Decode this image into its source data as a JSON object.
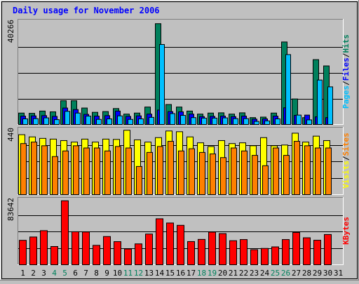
{
  "chart_data": [
    {
      "type": "bar",
      "title": "Daily usage for November 2006",
      "panel": "hits-files-pages",
      "ymax_label": "40266",
      "categories": [
        "1",
        "2",
        "3",
        "4",
        "5",
        "6",
        "7",
        "8",
        "9",
        "10",
        "11",
        "12",
        "13",
        "14",
        "15",
        "16",
        "17",
        "18",
        "19",
        "20",
        "21",
        "22",
        "23",
        "24",
        "25",
        "26",
        "27",
        "28",
        "29",
        "30",
        "31"
      ],
      "weekend_days": [
        "4",
        "5",
        "11",
        "12",
        "18",
        "19",
        "25",
        "26"
      ],
      "series": [
        {
          "name": "Hits",
          "color": "#00805c",
          "values": [
            4800,
            4700,
            5600,
            5300,
            9700,
            9700,
            6800,
            5100,
            5400,
            6600,
            4400,
            4800,
            7200,
            40266,
            8200,
            7200,
            5600,
            4400,
            4800,
            4900,
            4400,
            4900,
            3000,
            3200,
            4800,
            33000,
            10400,
            3000,
            26000,
            23500,
            0
          ]
        },
        {
          "name": "Files",
          "color": "#00c0ff",
          "values": [
            2500,
            2600,
            2900,
            2200,
            5500,
            4800,
            3600,
            2300,
            2500,
            3700,
            2300,
            2500,
            3100,
            32000,
            4600,
            3900,
            3000,
            2800,
            2800,
            2900,
            2600,
            2600,
            1500,
            1700,
            2500,
            28000,
            4000,
            2100,
            17900,
            15200,
            0
          ]
        },
        {
          "name": "Pages",
          "color": "#0000ff",
          "values": [
            3600,
            3700,
            3800,
            3500,
            6800,
            6200,
            4300,
            3600,
            3800,
            5600,
            3500,
            3700,
            4400,
            6000,
            5400,
            5300,
            4400,
            3400,
            3500,
            3600,
            3400,
            3600,
            2400,
            2500,
            3600,
            6900,
            3900,
            4000,
            3300,
            3000,
            0
          ]
        }
      ],
      "legend": [
        "Hits",
        "Files",
        "Pages"
      ],
      "legend_colors": [
        "#00805c",
        "#0000ff",
        "#00c0ff"
      ]
    },
    {
      "type": "bar",
      "panel": "visits-sites",
      "ymax_label": "440",
      "categories": [
        "1",
        "2",
        "3",
        "4",
        "5",
        "6",
        "7",
        "8",
        "9",
        "10",
        "11",
        "12",
        "13",
        "14",
        "15",
        "16",
        "17",
        "18",
        "19",
        "20",
        "21",
        "22",
        "23",
        "24",
        "25",
        "26",
        "27",
        "28",
        "29",
        "30",
        "31"
      ],
      "series": [
        {
          "name": "Visits",
          "color": "#ffff00",
          "values": [
            410,
            395,
            385,
            380,
            370,
            360,
            380,
            360,
            380,
            378,
            440,
            375,
            360,
            390,
            435,
            430,
            395,
            355,
            330,
            370,
            350,
            355,
            335,
            390,
            335,
            340,
            420,
            360,
            400,
            370,
            0
          ]
        },
        {
          "name": "Sites",
          "color": "#ff8000",
          "values": [
            350,
            360,
            335,
            262,
            300,
            335,
            320,
            320,
            300,
            330,
            320,
            195,
            290,
            330,
            365,
            300,
            315,
            290,
            280,
            255,
            320,
            300,
            270,
            200,
            320,
            270,
            365,
            335,
            320,
            320,
            0
          ]
        }
      ],
      "legend": [
        "Sites",
        "Visits"
      ],
      "legend_colors": [
        "#ff8000",
        "#ffff00"
      ]
    },
    {
      "type": "bar",
      "panel": "kbytes",
      "ymax_label": "83642",
      "categories": [
        "1",
        "2",
        "3",
        "4",
        "5",
        "6",
        "7",
        "8",
        "9",
        "10",
        "11",
        "12",
        "13",
        "14",
        "15",
        "16",
        "17",
        "18",
        "19",
        "20",
        "21",
        "22",
        "23",
        "24",
        "25",
        "26",
        "27",
        "28",
        "29",
        "30",
        "31"
      ],
      "series": [
        {
          "name": "KBytes",
          "color": "#ff0000",
          "values": [
            32500,
            36800,
            45000,
            24500,
            83642,
            43600,
            43300,
            26000,
            37400,
            30800,
            21300,
            27900,
            40600,
            60400,
            54900,
            51900,
            30900,
            33700,
            43100,
            41200,
            32000,
            33500,
            20400,
            22000,
            24000,
            33500,
            42600,
            35800,
            32600,
            40000,
            0
          ]
        }
      ],
      "legend": [
        "KBytes"
      ],
      "legend_colors": [
        "#ff0000"
      ]
    }
  ]
}
